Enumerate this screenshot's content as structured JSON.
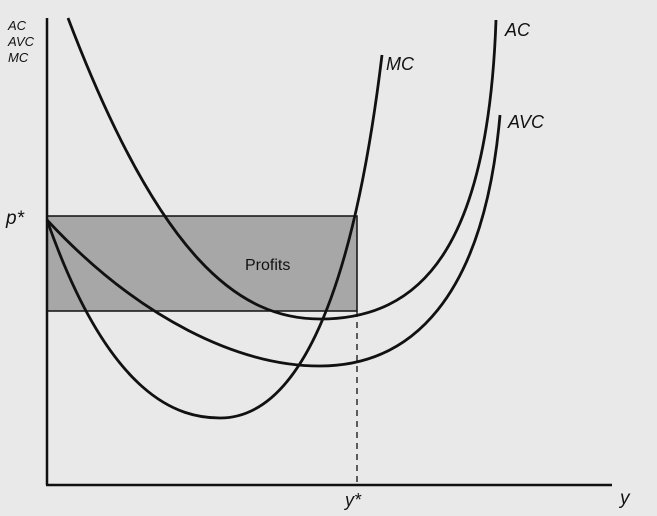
{
  "diagram": {
    "y_axis_label_lines": [
      "AC",
      "AVC",
      "MC"
    ],
    "x_axis_label": "y",
    "price_label": "p*",
    "quantity_label": "y*",
    "region_label": "Profits",
    "curve_labels": {
      "mc": "MC",
      "ac": "AC",
      "avc": "AVC"
    },
    "colors": {
      "background": "#e9e9e9",
      "curves": "#111111",
      "profit_region": "#a7a7a7"
    }
  }
}
